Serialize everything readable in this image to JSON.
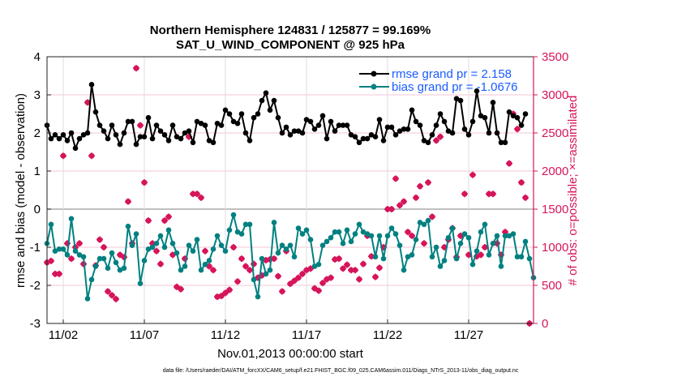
{
  "chart_data": {
    "type": "line",
    "title": [
      "Northern Hemisphere 124831 / 125877 = 99.169%",
      "SAT_U_WIND_COMPONENT @ 925 hPa"
    ],
    "xlabel": "Nov.01,2013 00:00:00 start",
    "ylabel": "rmse and bias (model - observation)",
    "ylabel_right": "# of obs: o=possible; ×=assimilated",
    "footnote": "data file: /Users/raeder/DAI/ATM_forcXX/CAM6_setup/f.e21.FHIST_BGC.f09_025.CAM6assim.011/Diags_NTrS_2013-11/obs_diag_output.nc",
    "xlim_days": [
      0,
      30
    ],
    "x_step_days": 0.25,
    "xticks": [
      {
        "day": 1,
        "label": "11/02"
      },
      {
        "day": 6,
        "label": "11/07"
      },
      {
        "day": 11,
        "label": "11/12"
      },
      {
        "day": 16,
        "label": "11/17"
      },
      {
        "day": 21,
        "label": "11/22"
      },
      {
        "day": 26,
        "label": "11/27"
      }
    ],
    "ylim": [
      -3,
      4
    ],
    "yticks": [
      "-3",
      "-2",
      "-1",
      "0",
      "1",
      "2",
      "3",
      "4"
    ],
    "ylim_right": [
      0,
      3500
    ],
    "yticks_right": [
      "0",
      "500",
      "1000",
      "1500",
      "2000",
      "2500",
      "3000",
      "3500"
    ],
    "legend": {
      "placement": "top-right",
      "entries": [
        "rmse grand pr = 2.158",
        "bias grand pr = -1.0676"
      ]
    },
    "colors": {
      "rmse": "#000000",
      "bias": "#008080",
      "obs": "#d6155b",
      "legend_text": "#1a5cff"
    },
    "series": [
      {
        "name": "rmse",
        "values": [
          2.2,
          1.85,
          1.95,
          1.85,
          1.95,
          1.8,
          2.0,
          1.6,
          1.85,
          1.95,
          2.0,
          3.27,
          2.55,
          2.2,
          2.05,
          1.85,
          2.2,
          1.95,
          1.7,
          2.0,
          2.3,
          2.3,
          1.7,
          1.9,
          1.9,
          2.4,
          1.85,
          2.2,
          2.05,
          1.95,
          1.8,
          2.2,
          1.9,
          1.85,
          2.0,
          2.05,
          1.75,
          2.3,
          2.25,
          2.2,
          1.8,
          1.75,
          2.25,
          2.2,
          2.6,
          2.5,
          2.3,
          2.25,
          2.5,
          2.0,
          1.8,
          2.4,
          2.5,
          2.85,
          3.05,
          2.6,
          2.85,
          2.4,
          2.0,
          2.15,
          1.95,
          2.05,
          2.05,
          2.0,
          2.35,
          2.3,
          2.1,
          2.2,
          2.45,
          1.85,
          2.3,
          2.05,
          2.2,
          2.2,
          2.2,
          1.95,
          1.9,
          1.75,
          1.85,
          1.85,
          1.95,
          1.9,
          2.35,
          1.8,
          2.15,
          2.15,
          1.95,
          2.05,
          2.1,
          2.1,
          2.6,
          2.3,
          2.2,
          1.8,
          1.75,
          1.95,
          2.2,
          2.5,
          2.3,
          2.05,
          2.0,
          2.9,
          2.85,
          2.1,
          1.95,
          2.3,
          3.1,
          2.45,
          2.4,
          2.0,
          2.8,
          2.0,
          1.75,
          1.75,
          2.55,
          2.45,
          2.4,
          2.2,
          2.5
        ]
      },
      {
        "name": "bias",
        "values": [
          -0.9,
          -0.4,
          -1.1,
          -1.05,
          -1.05,
          -1.2,
          -0.25,
          -1.1,
          -1.2,
          -1.25,
          -2.35,
          -1.85,
          -1.5,
          -1.3,
          -1.3,
          -1.55,
          -1.15,
          -1.4,
          -1.6,
          -1.55,
          -0.45,
          -0.95,
          -0.65,
          -1.95,
          -1.35,
          -1.05,
          -1.0,
          -0.9,
          -0.7,
          -1.0,
          -0.55,
          -0.9,
          -1.15,
          -1.6,
          -1.5,
          -0.95,
          -1.1,
          -0.8,
          -1.6,
          -1.45,
          -1.35,
          -1.05,
          -0.7,
          -0.95,
          -1.1,
          -0.55,
          -0.15,
          -0.6,
          -0.65,
          -0.4,
          -0.4,
          -1.85,
          -2.3,
          -1.3,
          -1.7,
          -1.6,
          -0.35,
          -1.15,
          -0.95,
          -1.05,
          -0.95,
          -1.25,
          -0.5,
          -0.65,
          -0.55,
          -0.8,
          -1.5,
          -1.45,
          -0.95,
          -0.85,
          -0.75,
          -0.6,
          -0.6,
          -0.9,
          -0.55,
          -0.85,
          -0.65,
          -0.4,
          -0.6,
          -0.65,
          -0.7,
          -1.25,
          -0.7,
          -1.3,
          -0.7,
          -0.5,
          -0.65,
          -0.95,
          -1.6,
          -1.25,
          -1.2,
          -0.8,
          -0.35,
          -0.4,
          -0.3,
          -1.25,
          -1.0,
          -1.5,
          -1.35,
          -0.75,
          -0.5,
          -1.3,
          -0.9,
          -0.65,
          -0.75,
          -1.45,
          -1.1,
          -0.6,
          -0.4,
          -1.2,
          -0.9,
          -0.7,
          -1.5,
          -0.7,
          -0.7,
          -0.65,
          -1.25,
          -1.25,
          -0.85,
          -1.3,
          -1.8
        ]
      },
      {
        "name": "obs_assimilated",
        "axis": "right",
        "values": [
          800,
          820,
          650,
          650,
          2200,
          1050,
          850,
          1000,
          1050,
          780,
          2900,
          2200,
          760,
          1100,
          1000,
          420,
          370,
          320,
          900,
          870,
          1600,
          1050,
          3350,
          2600,
          1850,
          1350,
          1050,
          950,
          780,
          1350,
          1400,
          900,
          480,
          450,
          850,
          2450,
          1700,
          1700,
          1650,
          950,
          750,
          700,
          350,
          360,
          400,
          440,
          1000,
          550,
          850,
          750,
          700,
          780,
          600,
          630,
          830,
          840,
          850,
          620,
          420,
          950,
          520,
          560,
          600,
          650,
          700,
          720,
          460,
          430,
          530,
          580,
          600,
          840,
          850,
          720,
          770,
          700,
          700,
          580,
          780,
          1150,
          880,
          610,
          730,
          1000,
          1500,
          1500,
          1900,
          1550,
          1600,
          1200,
          1150,
          1650,
          1800,
          1050,
          1850,
          1400,
          2400,
          2450,
          1000,
          1100,
          1250,
          870,
          1150,
          1700,
          900,
          1950,
          880,
          900,
          1000,
          1700,
          1700,
          1050,
          900,
          1200,
          2100,
          2750,
          2550,
          1850,
          1650,
          0
        ]
      }
    ]
  }
}
